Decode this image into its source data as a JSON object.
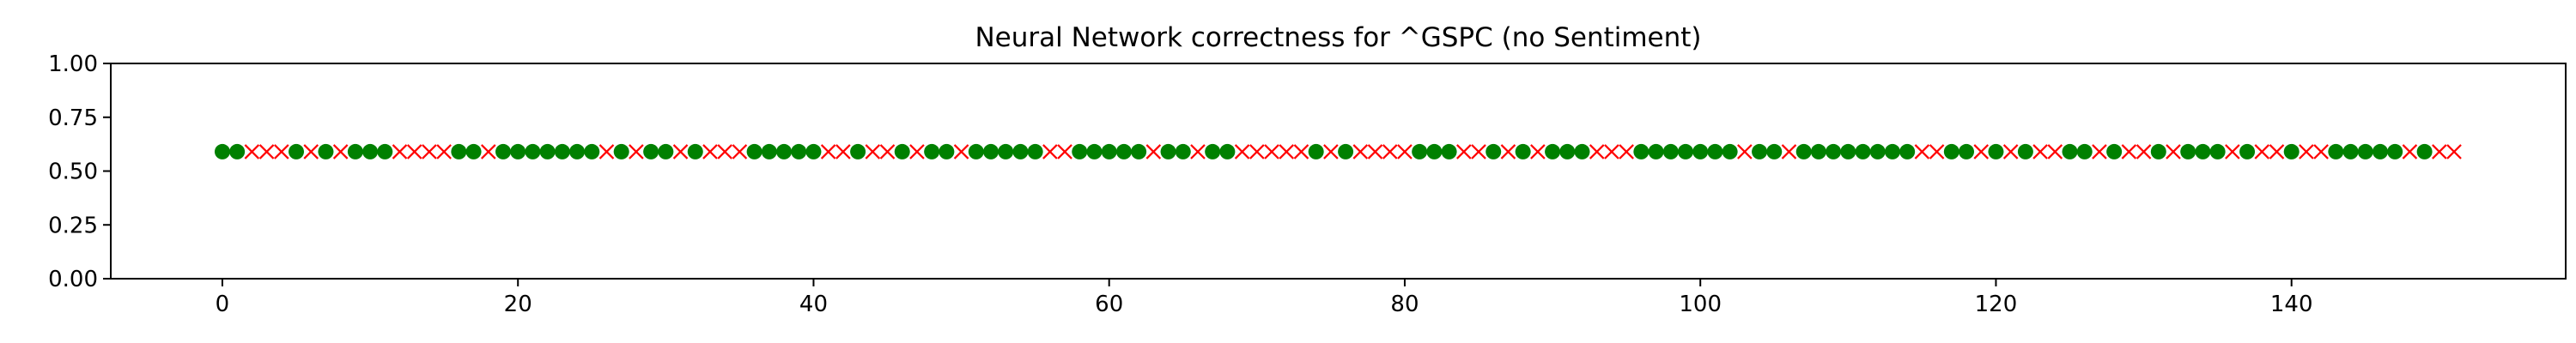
{
  "chart_data": {
    "type": "scatter",
    "title": "Neural Network correctness for ^GSPC (no Sentiment)",
    "xlabel": "",
    "ylabel": "",
    "xlim": [
      -7.55,
      158.55
    ],
    "ylim": [
      0,
      1
    ],
    "x_ticks": [
      0,
      20,
      40,
      60,
      80,
      100,
      120,
      140
    ],
    "x_tick_labels": [
      "0",
      "20",
      "40",
      "60",
      "80",
      "100",
      "120",
      "140"
    ],
    "y_ticks": [
      0,
      0.25,
      0.5,
      0.75,
      1
    ],
    "y_tick_labels": [
      "0.00",
      "0.25",
      "0.50",
      "0.75",
      "1.00"
    ],
    "grid": false,
    "legend": "none",
    "y_value": 0.59,
    "series": [
      {
        "marker": "circle",
        "color": "#008000",
        "x": [
          0,
          1,
          5,
          7,
          9,
          10,
          11,
          16,
          17,
          19,
          20,
          21,
          22,
          23,
          24,
          25,
          27,
          29,
          30,
          32,
          36,
          37,
          38,
          39,
          40,
          43,
          46,
          48,
          49,
          51,
          52,
          53,
          54,
          55,
          58,
          59,
          60,
          61,
          62,
          64,
          65,
          67,
          68,
          74,
          76,
          81,
          82,
          83,
          86,
          88,
          90,
          91,
          92,
          96,
          97,
          98,
          99,
          100,
          101,
          102,
          104,
          105,
          107,
          108,
          109,
          110,
          111,
          112,
          113,
          114,
          117,
          118,
          120,
          122,
          125,
          126,
          128,
          131,
          133,
          134,
          135,
          137,
          140,
          143,
          144,
          145,
          146,
          147,
          149
        ]
      },
      {
        "marker": "x",
        "color": "#ff0000",
        "x": [
          2,
          3,
          4,
          6,
          8,
          12,
          13,
          14,
          15,
          18,
          26,
          28,
          31,
          33,
          34,
          35,
          41,
          42,
          44,
          45,
          47,
          50,
          56,
          57,
          63,
          66,
          69,
          70,
          71,
          72,
          73,
          75,
          77,
          78,
          79,
          80,
          84,
          85,
          87,
          89,
          93,
          94,
          95,
          103,
          106,
          115,
          116,
          119,
          121,
          123,
          124,
          127,
          129,
          130,
          132,
          136,
          138,
          139,
          141,
          142,
          148,
          150,
          151
        ]
      }
    ]
  }
}
